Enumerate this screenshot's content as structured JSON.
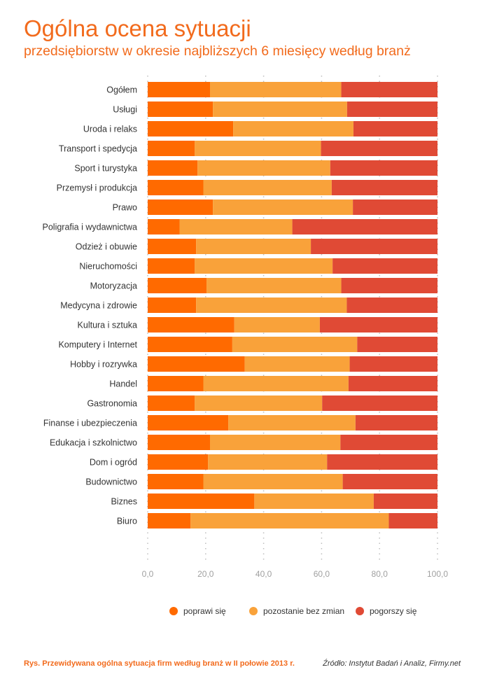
{
  "title": "Ogólna ocena sytuacji",
  "subtitle": "przedsiębiorstw w okresie najbliższych 6 miesięcy według branż",
  "caption": "Rys. Przewidywana ogólna sytuacja firm według branż w II połowie 2013 r.",
  "source": "Źródło: Instytut Badań i Analiz, Firmy.net",
  "colors": {
    "poprawi": "#ff6a00",
    "pozostanie": "#f9a23a",
    "pogorszy": "#e04a35"
  },
  "chart_data": {
    "type": "bar",
    "orientation": "horizontal",
    "stacked": true,
    "categories": [
      "Ogółem",
      "Usługi",
      "Uroda i relaks",
      "Transport i spedycja",
      "Sport i turystyka",
      "Przemysł i produkcja",
      "Prawo",
      "Poligrafia i wydawnictwa",
      "Odzież i obuwie",
      "Nieruchomości",
      "Motoryzacja",
      "Medycyna i zdrowie",
      "Kultura i sztuka",
      "Komputery i Internet",
      "Hobby i rozrywka",
      "Handel",
      "Gastronomia",
      "Finanse i ubezpieczenia",
      "Edukacja i szkolnictwo",
      "Dom i ogród",
      "Budownictwo",
      "Biznes",
      "Biuro"
    ],
    "series": [
      {
        "name": "poprawi się",
        "values": [
          21.5,
          22.5,
          29.5,
          16.2,
          17.2,
          19.2,
          22.5,
          11.0,
          16.7,
          16.2,
          20.3,
          16.7,
          29.9,
          29.2,
          33.5,
          19.2,
          16.2,
          27.8,
          21.5,
          20.8,
          19.2,
          36.8,
          14.8
        ]
      },
      {
        "name": "pozostanie bez zmian",
        "values": [
          45.3,
          46.3,
          41.5,
          43.6,
          45.8,
          44.3,
          48.3,
          38.9,
          39.6,
          47.6,
          46.5,
          52.0,
          29.5,
          43.1,
          36.2,
          50.1,
          44.0,
          43.9,
          45.0,
          41.1,
          48.1,
          41.2,
          68.4
        ]
      },
      {
        "name": "pogorszy się",
        "values": [
          33.2,
          31.2,
          29.0,
          40.2,
          37.0,
          36.5,
          29.2,
          50.1,
          43.7,
          36.2,
          33.2,
          31.3,
          40.6,
          27.7,
          30.3,
          30.7,
          39.8,
          28.3,
          33.5,
          38.1,
          32.7,
          22.0,
          16.8
        ]
      }
    ],
    "xlim": [
      0,
      100
    ],
    "xticks": [
      "0,0",
      "20,0",
      "40,0",
      "60,0",
      "80,0",
      "100,0"
    ],
    "grid": true,
    "legend_position": "bottom"
  }
}
